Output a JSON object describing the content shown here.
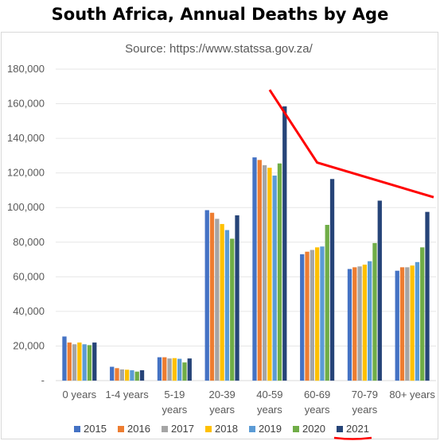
{
  "chart_data": {
    "type": "bar",
    "title": "South Africa, Annual Deaths by Age",
    "subtitle": "Source: https://www.statssa.gov.za/",
    "xlabel": "",
    "ylabel": "",
    "ylim": [
      0,
      180000
    ],
    "y_ticks": [
      {
        "value": 0,
        "label": "-"
      },
      {
        "value": 20000,
        "label": "20,000"
      },
      {
        "value": 40000,
        "label": "40,000"
      },
      {
        "value": 60000,
        "label": "60,000"
      },
      {
        "value": 80000,
        "label": "80,000"
      },
      {
        "value": 100000,
        "label": "100,000"
      },
      {
        "value": 120000,
        "label": "120,000"
      },
      {
        "value": 140000,
        "label": "140,000"
      },
      {
        "value": 160000,
        "label": "160,000"
      },
      {
        "value": 180000,
        "label": "180,000"
      }
    ],
    "grid": "horizontal",
    "legend_position": "bottom",
    "categories": [
      [
        "0 years"
      ],
      [
        "1-4 years"
      ],
      [
        "5-19",
        "years"
      ],
      [
        "20-39",
        "years"
      ],
      [
        "40-59",
        "years"
      ],
      [
        "60-69",
        "years"
      ],
      [
        "70-79",
        "years"
      ],
      [
        "80+ years"
      ]
    ],
    "series": [
      {
        "name": "2015",
        "color": "#4472c4",
        "values": [
          25500,
          8000,
          13500,
          98500,
          129000,
          73000,
          64500,
          63500
        ]
      },
      {
        "name": "2016",
        "color": "#ed7d31",
        "values": [
          22000,
          7200,
          13500,
          97000,
          127500,
          74500,
          65500,
          65500
        ]
      },
      {
        "name": "2017",
        "color": "#a5a5a5",
        "values": [
          21000,
          6500,
          12800,
          93500,
          124500,
          75500,
          66000,
          65500
        ]
      },
      {
        "name": "2018",
        "color": "#ffc000",
        "values": [
          22000,
          6300,
          13000,
          90500,
          123000,
          77000,
          67000,
          66500
        ]
      },
      {
        "name": "2019",
        "color": "#5b9bd5",
        "values": [
          21000,
          6000,
          12600,
          87000,
          118500,
          77500,
          69000,
          68500
        ]
      },
      {
        "name": "2020",
        "color": "#70ad47",
        "values": [
          20500,
          5200,
          10500,
          82000,
          125500,
          90000,
          79500,
          77000
        ]
      },
      {
        "name": "2021",
        "color": "#264478",
        "values": [
          22000,
          6000,
          12800,
          95500,
          158500,
          116500,
          104000,
          97500
        ]
      }
    ],
    "annotations": {
      "trend_line_color": "#ff0000",
      "trend_line_points_data": [
        [
          4.5,
          168000
        ],
        [
          5.5,
          126000
        ],
        [
          7.95,
          106000
        ]
      ],
      "legend_underline_series": "2021"
    }
  }
}
